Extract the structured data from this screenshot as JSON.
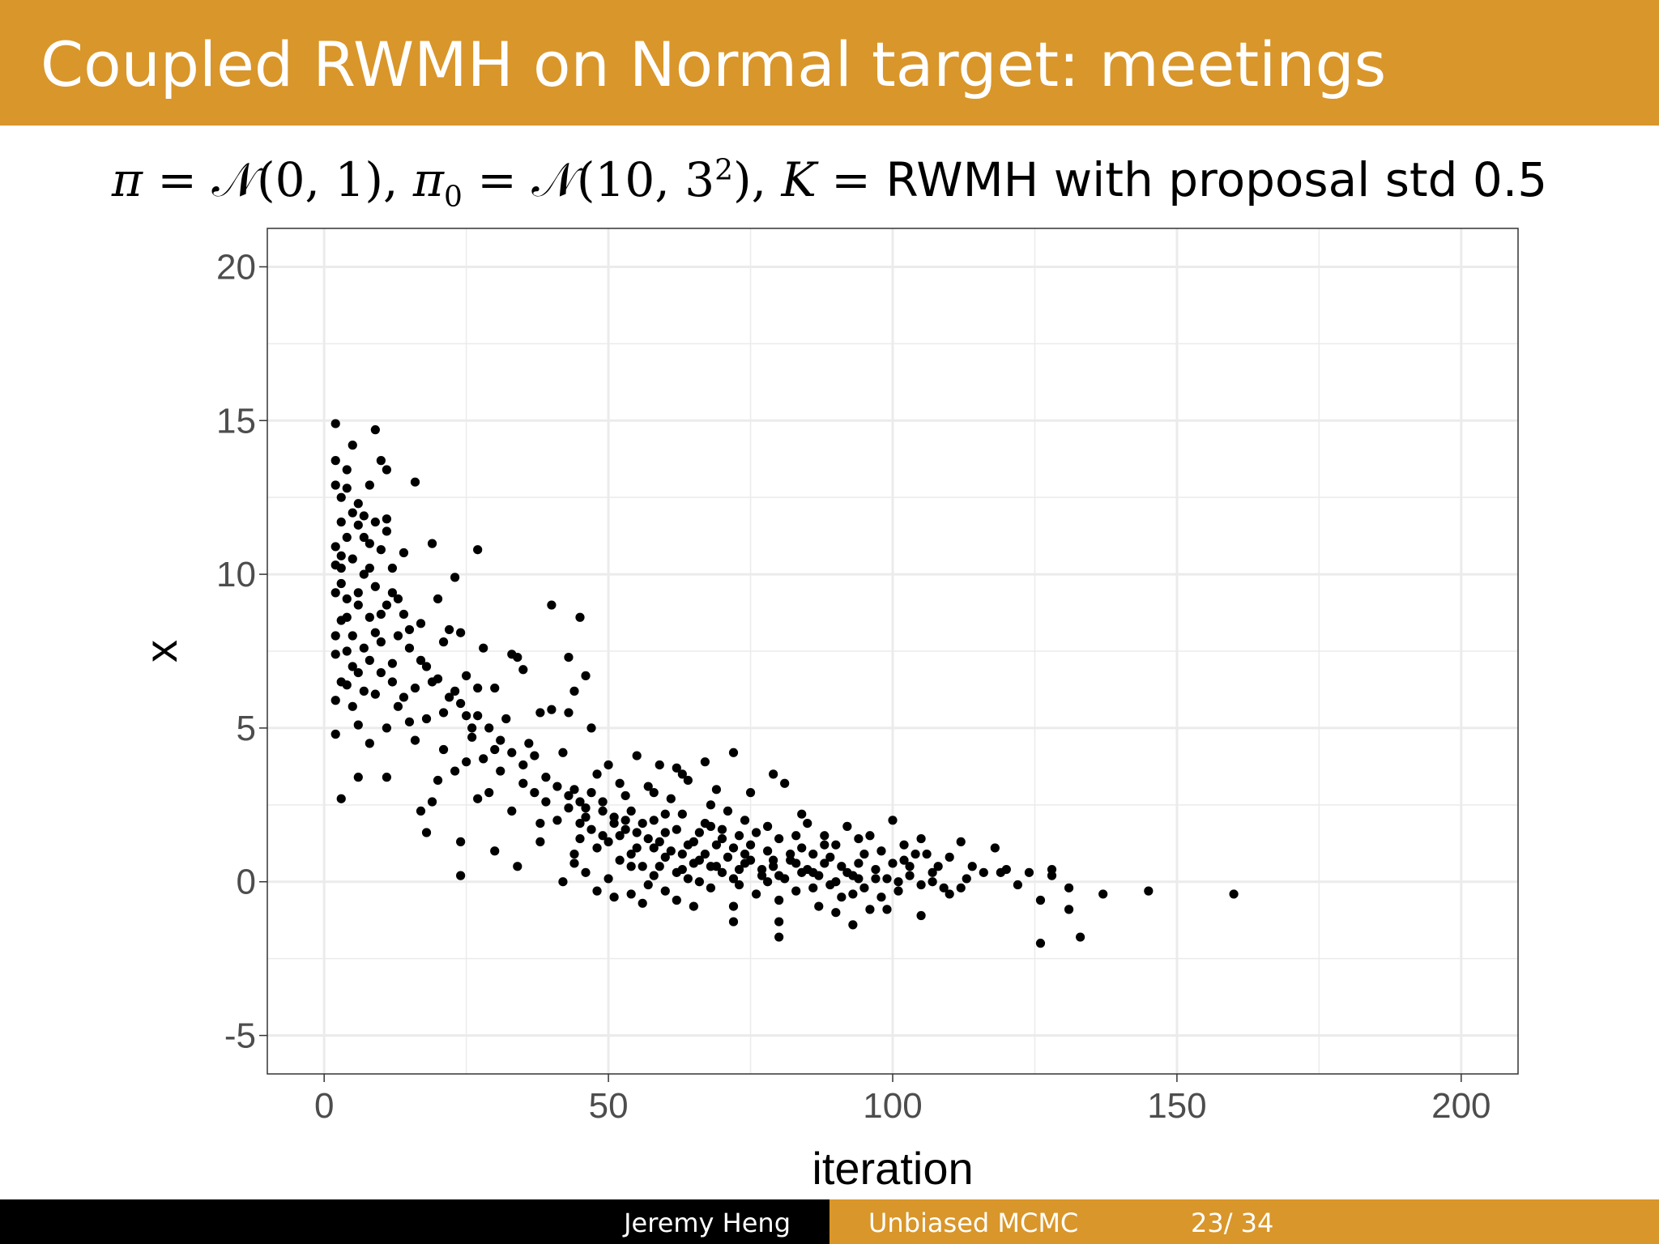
{
  "slide": {
    "title": "Coupled RWMH on Normal target: meetings",
    "subtitle": {
      "pi": "π",
      "eq": " = ",
      "normal": "𝒩",
      "target_args": "(0, 1)",
      "sep": ", ",
      "pi0": "π",
      "pi0_sub": "0",
      "init_args_open": "(10, 3",
      "init_sup": "2",
      "init_args_close": ")",
      "kernel_symbol": "K",
      "kernel_desc": "RWMH with proposal std 0.5"
    }
  },
  "footer": {
    "author": "Jeremy Heng",
    "short_title": "Unbiased MCMC",
    "page": "23/ 34"
  },
  "colors": {
    "accent": "#d9962a",
    "points": "#000000",
    "grid": "#ebebeb",
    "axis_text": "#4d4d4d"
  },
  "chart_data": {
    "type": "scatter",
    "xlabel": "iteration",
    "ylabel": "x",
    "xlim": [
      -10,
      210
    ],
    "ylim": [
      -6.25,
      21.25
    ],
    "xticks": [
      0,
      50,
      100,
      150,
      200
    ],
    "yticks": [
      -5,
      0,
      5,
      10,
      15,
      20
    ],
    "xtick_labels": [
      "0",
      "50",
      "100",
      "150",
      "200"
    ],
    "ytick_labels": [
      "-5",
      "0",
      "5",
      "10",
      "15",
      "20"
    ],
    "grid": true,
    "legend": "none",
    "points": [
      [
        2,
        14.9
      ],
      [
        9,
        14.7
      ],
      [
        5,
        14.2
      ],
      [
        10,
        13.7
      ],
      [
        2,
        13.7
      ],
      [
        11,
        13.4
      ],
      [
        16,
        13.0
      ],
      [
        8,
        12.9
      ],
      [
        2,
        12.9
      ],
      [
        4,
        12.8
      ],
      [
        3,
        12.5
      ],
      [
        6,
        12.3
      ],
      [
        5,
        12.0
      ],
      [
        7,
        11.9
      ],
      [
        3,
        11.7
      ],
      [
        9,
        11.7
      ],
      [
        11,
        11.4
      ],
      [
        4,
        11.2
      ],
      [
        8,
        11.0
      ],
      [
        2,
        10.9
      ],
      [
        19,
        11.0
      ],
      [
        27,
        10.8
      ],
      [
        10,
        10.8
      ],
      [
        14,
        10.7
      ],
      [
        5,
        10.5
      ],
      [
        3,
        10.2
      ],
      [
        7,
        10.0
      ],
      [
        12,
        10.2
      ],
      [
        23,
        9.9
      ],
      [
        9,
        9.6
      ],
      [
        2,
        9.4
      ],
      [
        4,
        9.2
      ],
      [
        6,
        9.0
      ],
      [
        11,
        9.0
      ],
      [
        14,
        8.7
      ],
      [
        8,
        8.6
      ],
      [
        3,
        8.5
      ],
      [
        17,
        8.4
      ],
      [
        20,
        9.2
      ],
      [
        40,
        9.0
      ],
      [
        45,
        8.6
      ],
      [
        22,
        8.2
      ],
      [
        24,
        8.1
      ],
      [
        5,
        8.0
      ],
      [
        10,
        7.8
      ],
      [
        15,
        7.6
      ],
      [
        2,
        7.4
      ],
      [
        8,
        7.2
      ],
      [
        28,
        7.6
      ],
      [
        12,
        7.1
      ],
      [
        33,
        7.4
      ],
      [
        34,
        7.3
      ],
      [
        18,
        7.0
      ],
      [
        6,
        6.8
      ],
      [
        20,
        6.6
      ],
      [
        25,
        6.7
      ],
      [
        4,
        6.4
      ],
      [
        35,
        6.9
      ],
      [
        43,
        7.3
      ],
      [
        46,
        6.7
      ],
      [
        16,
        6.3
      ],
      [
        9,
        6.1
      ],
      [
        30,
        6.3
      ],
      [
        22,
        6.0
      ],
      [
        2,
        5.9
      ],
      [
        13,
        5.7
      ],
      [
        44,
        6.2
      ],
      [
        38,
        5.5
      ],
      [
        27,
        5.4
      ],
      [
        18,
        5.3
      ],
      [
        40,
        5.6
      ],
      [
        24,
        5.8
      ],
      [
        32,
        5.3
      ],
      [
        6,
        5.1
      ],
      [
        11,
        5.0
      ],
      [
        26,
        4.7
      ],
      [
        47,
        5.0
      ],
      [
        43,
        5.5
      ],
      [
        2,
        4.8
      ],
      [
        8,
        4.5
      ],
      [
        16,
        4.6
      ],
      [
        21,
        4.3
      ],
      [
        36,
        4.5
      ],
      [
        30,
        4.3
      ],
      [
        42,
        4.2
      ],
      [
        72,
        4.2
      ],
      [
        67,
        3.9
      ],
      [
        55,
        4.1
      ],
      [
        59,
        3.8
      ],
      [
        25,
        3.9
      ],
      [
        28,
        4.0
      ],
      [
        50,
        3.8
      ],
      [
        62,
        3.7
      ],
      [
        48,
        3.5
      ],
      [
        31,
        3.6
      ],
      [
        20,
        3.3
      ],
      [
        11,
        3.4
      ],
      [
        6,
        3.4
      ],
      [
        52,
        3.2
      ],
      [
        79,
        3.5
      ],
      [
        64,
        3.3
      ],
      [
        81,
        3.2
      ],
      [
        35,
        3.2
      ],
      [
        44,
        3.0
      ],
      [
        58,
        2.9
      ],
      [
        75,
        2.9
      ],
      [
        39,
        2.6
      ],
      [
        27,
        2.7
      ],
      [
        49,
        2.6
      ],
      [
        33,
        2.3
      ],
      [
        19,
        2.6
      ],
      [
        3,
        2.7
      ],
      [
        17,
        2.3
      ],
      [
        68,
        2.5
      ],
      [
        60,
        2.2
      ],
      [
        46,
        2.1
      ],
      [
        41,
        2.0
      ],
      [
        54,
        2.3
      ],
      [
        74,
        2.0
      ],
      [
        85,
        1.9
      ],
      [
        100,
        2.0
      ],
      [
        92,
        1.8
      ],
      [
        88,
        1.5
      ],
      [
        70,
        1.7
      ],
      [
        66,
        1.6
      ],
      [
        56,
        1.9
      ],
      [
        62,
        1.7
      ],
      [
        52,
        1.5
      ],
      [
        45,
        1.4
      ],
      [
        80,
        1.4
      ],
      [
        96,
        1.5
      ],
      [
        105,
        1.4
      ],
      [
        118,
        1.1
      ],
      [
        112,
        1.3
      ],
      [
        38,
        1.3
      ],
      [
        30,
        1.0
      ],
      [
        24,
        1.3
      ],
      [
        18,
        1.6
      ],
      [
        48,
        1.1
      ],
      [
        58,
        1.1
      ],
      [
        64,
        1.2
      ],
      [
        72,
        1.1
      ],
      [
        78,
        1.0
      ],
      [
        84,
        1.1
      ],
      [
        90,
        1.2
      ],
      [
        98,
        1.0
      ],
      [
        104,
        0.9
      ],
      [
        110,
        0.8
      ],
      [
        44,
        0.9
      ],
      [
        52,
        0.7
      ],
      [
        60,
        0.8
      ],
      [
        66,
        0.7
      ],
      [
        74,
        0.6
      ],
      [
        82,
        0.7
      ],
      [
        88,
        0.6
      ],
      [
        94,
        0.6
      ],
      [
        100,
        0.6
      ],
      [
        108,
        0.5
      ],
      [
        114,
        0.5
      ],
      [
        120,
        0.4
      ],
      [
        128,
        0.4
      ],
      [
        56,
        0.5
      ],
      [
        63,
        0.4
      ],
      [
        70,
        0.3
      ],
      [
        77,
        0.4
      ],
      [
        86,
        0.3
      ],
      [
        92,
        0.3
      ],
      [
        103,
        0.2
      ],
      [
        116,
        0.3
      ],
      [
        124,
        0.3
      ],
      [
        46,
        0.3
      ],
      [
        50,
        0.1
      ],
      [
        58,
        0.2
      ],
      [
        66,
        0.0
      ],
      [
        72,
        0.1
      ],
      [
        80,
        0.2
      ],
      [
        90,
        0.0
      ],
      [
        97,
        0.1
      ],
      [
        107,
        0.0
      ],
      [
        112,
        -0.2
      ],
      [
        122,
        -0.1
      ],
      [
        131,
        -0.2
      ],
      [
        137,
        -0.4
      ],
      [
        145,
        -0.3
      ],
      [
        160,
        -0.4
      ],
      [
        126,
        -0.6
      ],
      [
        42,
        0.0
      ],
      [
        48,
        -0.3
      ],
      [
        54,
        -0.4
      ],
      [
        60,
        -0.3
      ],
      [
        68,
        -0.2
      ],
      [
        76,
        -0.4
      ],
      [
        83,
        -0.3
      ],
      [
        93,
        -0.4
      ],
      [
        101,
        -0.3
      ],
      [
        110,
        -0.4
      ],
      [
        56,
        -0.7
      ],
      [
        62,
        -0.6
      ],
      [
        72,
        -0.8
      ],
      [
        80,
        -0.6
      ],
      [
        87,
        -0.8
      ],
      [
        96,
        -0.9
      ],
      [
        105,
        -1.1
      ],
      [
        51,
        -0.5
      ],
      [
        65,
        -0.8
      ],
      [
        90,
        -1.0
      ],
      [
        99,
        -0.9
      ],
      [
        131,
        -0.9
      ],
      [
        72,
        -1.3
      ],
      [
        80,
        -1.3
      ],
      [
        93,
        -1.4
      ],
      [
        80,
        -1.8
      ],
      [
        133,
        -1.8
      ],
      [
        126,
        -2.0
      ],
      [
        24,
        0.2
      ],
      [
        34,
        0.5
      ],
      [
        44,
        0.6
      ],
      [
        54,
        0.5
      ],
      [
        38,
        1.9
      ],
      [
        46,
        2.4
      ],
      [
        53,
        2.8
      ],
      [
        57,
        3.1
      ],
      [
        63,
        3.5
      ],
      [
        69,
        3.0
      ],
      [
        84,
        2.2
      ],
      [
        94,
        1.4
      ],
      [
        102,
        1.2
      ],
      [
        86,
        0.9
      ],
      [
        76,
        1.6
      ],
      [
        67,
        1.9
      ],
      [
        71,
        2.3
      ],
      [
        61,
        2.7
      ],
      [
        51,
        2.1
      ],
      [
        47,
        1.7
      ],
      [
        43,
        2.4
      ],
      [
        37,
        2.9
      ],
      [
        29,
        2.9
      ],
      [
        23,
        3.6
      ],
      [
        26,
        5.0
      ],
      [
        21,
        5.5
      ],
      [
        14,
        6.0
      ],
      [
        12,
        6.5
      ],
      [
        7,
        7.6
      ],
      [
        4,
        8.6
      ],
      [
        6,
        9.4
      ],
      [
        3,
        10.6
      ],
      [
        9,
        8.1
      ],
      [
        5,
        7.0
      ],
      [
        13,
        8.0
      ],
      [
        15,
        5.2
      ],
      [
        10,
        6.8
      ],
      [
        8,
        10.2
      ],
      [
        12,
        9.4
      ],
      [
        7,
        11.2
      ],
      [
        4,
        13.4
      ],
      [
        2,
        10.3
      ],
      [
        3,
        9.7
      ],
      [
        2,
        8.0
      ],
      [
        4,
        7.5
      ],
      [
        3,
        6.5
      ],
      [
        5,
        5.7
      ],
      [
        7,
        6.2
      ],
      [
        10,
        8.7
      ],
      [
        6,
        11.6
      ],
      [
        11,
        11.8
      ],
      [
        13,
        9.2
      ],
      [
        15,
        8.2
      ],
      [
        17,
        7.2
      ],
      [
        19,
        6.5
      ],
      [
        21,
        7.8
      ],
      [
        23,
        6.2
      ],
      [
        25,
        5.4
      ],
      [
        27,
        6.3
      ],
      [
        29,
        5.0
      ],
      [
        31,
        4.6
      ],
      [
        33,
        4.2
      ],
      [
        35,
        3.8
      ],
      [
        37,
        4.1
      ],
      [
        39,
        3.4
      ],
      [
        41,
        3.1
      ],
      [
        43,
        2.8
      ],
      [
        45,
        2.6
      ],
      [
        47,
        2.9
      ],
      [
        49,
        2.3
      ],
      [
        51,
        1.9
      ],
      [
        53,
        2.0
      ],
      [
        55,
        1.6
      ],
      [
        57,
        1.4
      ],
      [
        59,
        1.3
      ],
      [
        61,
        1.0
      ],
      [
        63,
        0.9
      ],
      [
        65,
        0.6
      ],
      [
        67,
        0.9
      ],
      [
        69,
        0.5
      ],
      [
        71,
        0.8
      ],
      [
        73,
        0.4
      ],
      [
        75,
        0.7
      ],
      [
        77,
        0.2
      ],
      [
        79,
        0.5
      ],
      [
        81,
        0.1
      ],
      [
        83,
        0.6
      ],
      [
        85,
        0.4
      ],
      [
        87,
        0.2
      ],
      [
        89,
        -0.1
      ],
      [
        91,
        0.5
      ],
      [
        93,
        0.2
      ],
      [
        95,
        -0.2
      ],
      [
        97,
        0.4
      ],
      [
        99,
        0.1
      ],
      [
        101,
        0.0
      ],
      [
        103,
        0.5
      ],
      [
        105,
        -0.1
      ],
      [
        107,
        0.3
      ],
      [
        109,
        -0.2
      ],
      [
        54,
        0.9
      ],
      [
        59,
        0.5
      ],
      [
        64,
        0.1
      ],
      [
        69,
        1.2
      ],
      [
        74,
        0.9
      ],
      [
        79,
        0.7
      ],
      [
        84,
        0.3
      ],
      [
        89,
        0.8
      ],
      [
        94,
        0.1
      ],
      [
        57,
        -0.1
      ],
      [
        62,
        0.3
      ],
      [
        68,
        0.5
      ],
      [
        73,
        -0.1
      ],
      [
        78,
        0.0
      ],
      [
        86,
        -0.2
      ],
      [
        91,
        -0.5
      ],
      [
        98,
        -0.5
      ],
      [
        50,
        1.3
      ],
      [
        55,
        1.1
      ],
      [
        60,
        1.6
      ],
      [
        65,
        1.3
      ],
      [
        70,
        1.4
      ],
      [
        75,
        1.2
      ],
      [
        82,
        0.9
      ],
      [
        45,
        1.9
      ],
      [
        49,
        1.5
      ],
      [
        53,
        1.7
      ],
      [
        58,
        2.0
      ],
      [
        63,
        2.2
      ],
      [
        68,
        1.8
      ],
      [
        73,
        1.5
      ],
      [
        78,
        1.8
      ],
      [
        83,
        1.5
      ],
      [
        88,
        1.2
      ],
      [
        95,
        0.9
      ],
      [
        102,
        0.7
      ],
      [
        106,
        0.9
      ],
      [
        113,
        0.1
      ],
      [
        119,
        0.3
      ],
      [
        128,
        0.2
      ]
    ]
  }
}
